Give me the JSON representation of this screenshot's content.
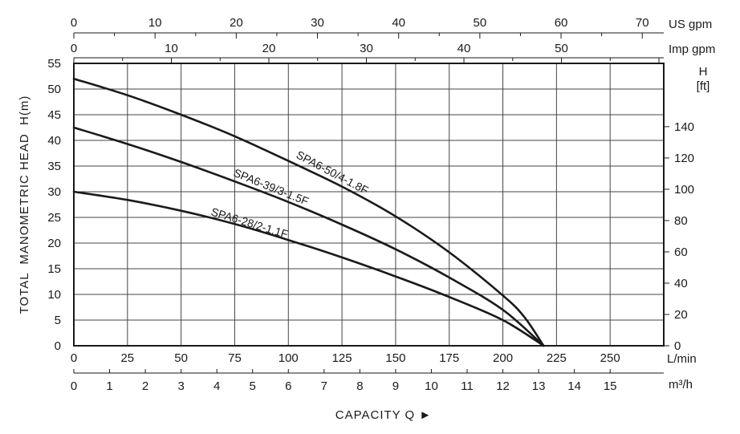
{
  "chart_data": {
    "type": "line",
    "title": "",
    "xlabel": "CAPACITY Q ►",
    "ylabel": "TOTAL  MANOMETRIC HEAD  H(m)",
    "xlim": [
      0,
      275
    ],
    "ylim": [
      0,
      55
    ],
    "grid": true,
    "x_ticks": [
      "0",
      "25",
      "50",
      "75",
      "100",
      "125",
      "150",
      "175",
      "200",
      "225",
      "250"
    ],
    "x_unit": "L/min",
    "y_ticks": [
      "0",
      "5",
      "10",
      "15",
      "20",
      "25",
      "30",
      "35",
      "40",
      "45",
      "50",
      "55"
    ],
    "secondary_axes": {
      "us_gpm": {
        "unit": "US gpm",
        "ticks": [
          "0",
          "10",
          "20",
          "30",
          "40",
          "50",
          "60",
          "70"
        ]
      },
      "imp_gpm": {
        "unit": "Imp gpm",
        "ticks": [
          "0",
          "10",
          "20",
          "30",
          "40",
          "50"
        ]
      },
      "m3h": {
        "unit": "m³/h",
        "ticks": [
          "0",
          "1",
          "2",
          "3",
          "4",
          "5",
          "6",
          "7",
          "8",
          "9",
          "10",
          "11",
          "12",
          "13",
          "14",
          "15"
        ]
      },
      "h_ft": {
        "unit_line1": "H",
        "unit_line2": "[ft]",
        "ticks": [
          "0",
          "20",
          "40",
          "60",
          "80",
          "100",
          "120",
          "140"
        ]
      }
    },
    "series": [
      {
        "name": "SPA6-50/4-1.8F",
        "x": [
          0,
          25,
          50,
          75,
          100,
          125,
          150,
          175,
          200,
          210,
          219
        ],
        "y": [
          52,
          48.8,
          45,
          40.8,
          36,
          31,
          25.2,
          18.2,
          9.8,
          5.6,
          0
        ]
      },
      {
        "name": "SPA6-39/3-1.5F",
        "x": [
          0,
          25,
          50,
          75,
          100,
          125,
          150,
          175,
          200,
          219
        ],
        "y": [
          42.5,
          39.3,
          35.8,
          32,
          28,
          23.6,
          18.8,
          13.3,
          7,
          0
        ]
      },
      {
        "name": "SPA6-28/2-1.1F",
        "x": [
          0,
          25,
          50,
          75,
          100,
          125,
          150,
          175,
          200,
          219
        ],
        "y": [
          30,
          28.4,
          26.3,
          23.7,
          20.6,
          17.2,
          13.5,
          9.5,
          5,
          0
        ]
      }
    ]
  }
}
